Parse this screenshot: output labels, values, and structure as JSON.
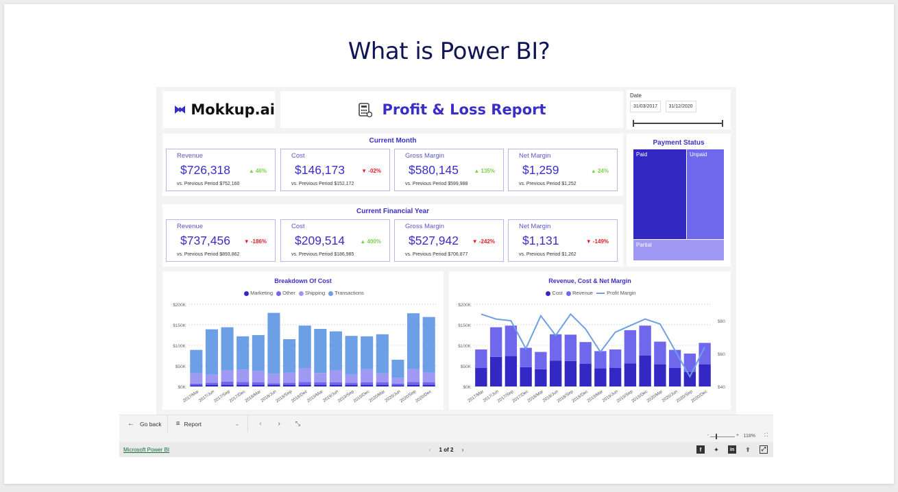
{
  "page_title": "What is Power BI?",
  "logo": {
    "text": "Mokkup.ai"
  },
  "report_title": "Profit & Loss Report",
  "date_filter": {
    "label": "Date",
    "start": "31/03/2017",
    "end": "31/12/2020"
  },
  "current_month": {
    "title": "Current Month",
    "kpis": [
      {
        "label": "Revenue",
        "value": "$726,318",
        "delta": "▲ 46%",
        "direction": "up",
        "prev": "vs. Previous Period $752,160"
      },
      {
        "label": "Cost",
        "value": "$146,173",
        "delta": "▼ -02%",
        "direction": "down",
        "prev": "vs. Previous Period $152,172"
      },
      {
        "label": "Gross Margin",
        "value": "$580,145",
        "delta": "▲ 135%",
        "direction": "up",
        "prev": "vs. Previous Period $599,988"
      },
      {
        "label": "Net Margin",
        "value": "$1,259",
        "delta": "▲ 24%",
        "direction": "up",
        "prev": "vs. Previous Period $1,252"
      }
    ]
  },
  "current_fy": {
    "title": "Current Financial Year",
    "kpis": [
      {
        "label": "Revenue",
        "value": "$737,456",
        "delta": "▼ -186%",
        "direction": "down",
        "prev": "vs. Previous Period $893,862"
      },
      {
        "label": "Cost",
        "value": "$209,514",
        "delta": "▲ 400%",
        "direction": "up",
        "prev": "vs. Previous Period $186,985"
      },
      {
        "label": "Gross Margin",
        "value": "$527,942",
        "delta": "▼ -242%",
        "direction": "down",
        "prev": "vs. Previous Period $706,877"
      },
      {
        "label": "Net Margin",
        "value": "$1,131",
        "delta": "▼ -149%",
        "direction": "down",
        "prev": "vs. Previous Period $1,262"
      }
    ]
  },
  "payment_status": {
    "title": "Payment Status",
    "paid": "Paid",
    "unpaid": "Unpaid",
    "partial": "Partial"
  },
  "colors": {
    "dark": "#3328c4",
    "mid": "#6f68ec",
    "light": "#9f99f3",
    "blue": "#6c9fe6",
    "accent": "#3b2ec8"
  },
  "chart_data": [
    {
      "type": "bar",
      "stacked": true,
      "title": "Breakdown Of Cost",
      "categories": [
        "2017/Mar",
        "2017/Jun",
        "2017/Sep",
        "2017/Dec",
        "2018/Mar",
        "2018/Jun",
        "2018/Sep",
        "2018/Dec",
        "2019/Mar",
        "2019/Jun",
        "2019/Sep",
        "2019/Dec",
        "2020/Mar",
        "2020/Jun",
        "2020/Sep",
        "2020/Dec"
      ],
      "series": [
        {
          "name": "Marketing",
          "values": [
            3,
            4,
            4,
            4,
            4,
            4,
            4,
            4,
            4,
            4,
            4,
            4,
            4,
            3,
            4,
            4
          ]
        },
        {
          "name": "Other",
          "values": [
            4,
            5,
            8,
            7,
            6,
            4,
            5,
            7,
            6,
            6,
            5,
            6,
            6,
            4,
            7,
            6
          ]
        },
        {
          "name": "Shipping",
          "values": [
            25,
            20,
            28,
            30,
            28,
            23,
            25,
            34,
            23,
            30,
            20,
            32,
            22,
            14,
            31,
            24
          ]
        },
        {
          "name": "Transactions",
          "values": [
            57,
            110,
            104,
            81,
            87,
            148,
            81,
            103,
            107,
            94,
            94,
            80,
            95,
            44,
            136,
            135
          ]
        }
      ],
      "y_ticks": [
        "$0K",
        "$50K",
        "$100K",
        "$150K",
        "$200K"
      ],
      "ylim": [
        0,
        200
      ]
    },
    {
      "type": "bar+line",
      "title": "Revenue, Cost & Net Margin",
      "categories": [
        "2017/Mar",
        "2017/Jun",
        "2017/Sep",
        "2017/Dec",
        "2018/Mar",
        "2018/Jun",
        "2018/Sep",
        "2018/Dec",
        "2019/Mar",
        "2019/Jun",
        "2019/Sep",
        "2019/Dec",
        "2020/Mar",
        "2020/Jun",
        "2020/Sep",
        "2020/Dec"
      ],
      "series": [
        {
          "name": "Cost",
          "values": [
            45,
            72,
            74,
            47,
            42,
            63,
            62,
            55,
            44,
            45,
            56,
            75,
            54,
            45,
            35,
            54
          ]
        },
        {
          "name": "Revenue",
          "values": [
            45,
            72,
            74,
            47,
            42,
            64,
            64,
            53,
            42,
            45,
            81,
            73,
            55,
            44,
            45,
            52
          ]
        },
        {
          "name": "Profit Margin",
          "values": [
            84,
            81,
            80,
            63,
            83,
            71,
            84,
            75,
            61,
            73,
            77,
            81,
            78,
            62,
            46,
            64
          ]
        }
      ],
      "y_ticks": [
        "$0K",
        "$50K",
        "$100K",
        "$150K",
        "$200K"
      ],
      "ylim": [
        0,
        200
      ],
      "y2_ticks": [
        "$40",
        "$60",
        "$80"
      ],
      "y2lim": [
        40,
        90
      ]
    }
  ],
  "bottom_bar": {
    "go_back": "Go back",
    "report": "Report",
    "zoom": "118%",
    "pbi_link": "Microsoft Power BI",
    "pager": "1 of 2"
  }
}
